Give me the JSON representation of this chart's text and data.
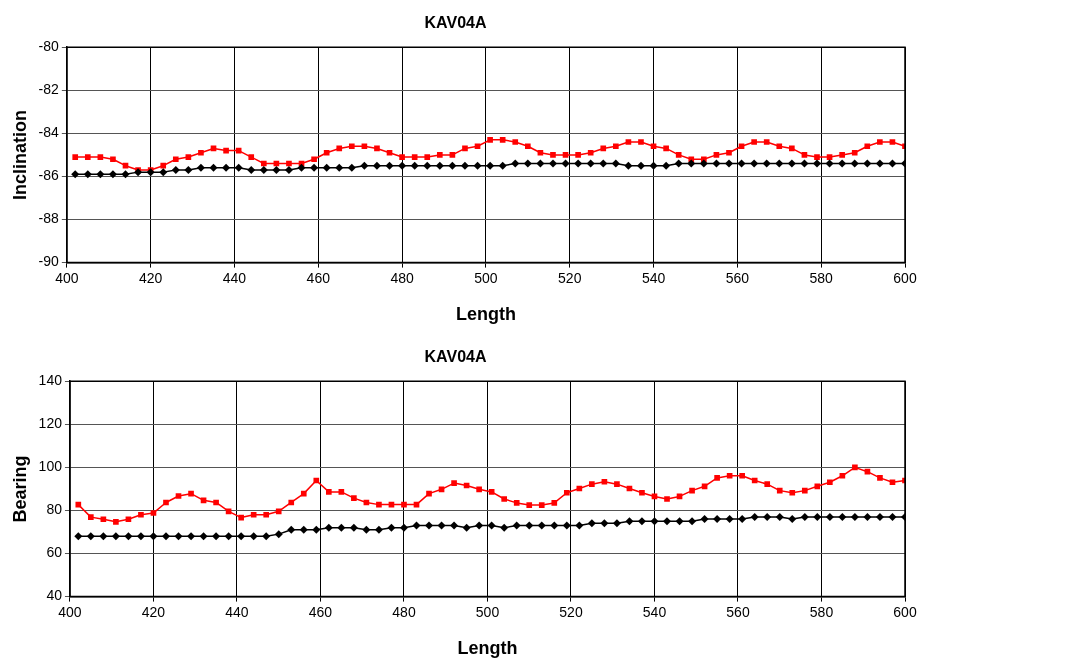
{
  "chart_data": [
    {
      "type": "line",
      "title": "KAV04A",
      "xlabel": "Length",
      "ylabel": "Inclination",
      "xlim": [
        400,
        600
      ],
      "xticks": [
        400,
        420,
        440,
        460,
        480,
        500,
        520,
        540,
        560,
        580,
        600
      ],
      "ylim": [
        -90,
        -80
      ],
      "yticks": [
        -90,
        -88,
        -86,
        -84,
        -82,
        -80
      ],
      "grid": true,
      "legend": false,
      "line_style": "solid",
      "x": [
        402,
        405,
        408,
        411,
        414,
        417,
        420,
        423,
        426,
        429,
        432,
        435,
        438,
        441,
        444,
        447,
        450,
        453,
        456,
        459,
        462,
        465,
        468,
        471,
        474,
        477,
        480,
        483,
        486,
        489,
        492,
        495,
        498,
        501,
        504,
        507,
        510,
        513,
        516,
        519,
        522,
        525,
        528,
        531,
        534,
        537,
        540,
        543,
        546,
        549,
        552,
        555,
        558,
        561,
        564,
        567,
        570,
        573,
        576,
        579,
        582,
        585,
        588,
        591,
        594,
        597,
        600
      ],
      "series": [
        {
          "color": "#000000",
          "marker": "diamond",
          "values": [
            -85.9,
            -85.9,
            -85.9,
            -85.9,
            -85.9,
            -85.8,
            -85.8,
            -85.8,
            -85.7,
            -85.7,
            -85.6,
            -85.6,
            -85.6,
            -85.6,
            -85.7,
            -85.7,
            -85.7,
            -85.7,
            -85.6,
            -85.6,
            -85.6,
            -85.6,
            -85.6,
            -85.5,
            -85.5,
            -85.5,
            -85.5,
            -85.5,
            -85.5,
            -85.5,
            -85.5,
            -85.5,
            -85.5,
            -85.5,
            -85.5,
            -85.4,
            -85.4,
            -85.4,
            -85.4,
            -85.4,
            -85.4,
            -85.4,
            -85.4,
            -85.4,
            -85.5,
            -85.5,
            -85.5,
            -85.5,
            -85.4,
            -85.4,
            -85.4,
            -85.4,
            -85.4,
            -85.4,
            -85.4,
            -85.4,
            -85.4,
            -85.4,
            -85.4,
            -85.4,
            -85.4,
            -85.4,
            -85.4,
            -85.4,
            -85.4,
            -85.4,
            -85.4
          ]
        },
        {
          "color": "#ff0000",
          "marker": "square",
          "values": [
            -85.1,
            -85.1,
            -85.1,
            -85.2,
            -85.5,
            -85.7,
            -85.7,
            -85.5,
            -85.2,
            -85.1,
            -84.9,
            -84.7,
            -84.8,
            -84.8,
            -85.1,
            -85.4,
            -85.4,
            -85.4,
            -85.4,
            -85.2,
            -84.9,
            -84.7,
            -84.6,
            -84.6,
            -84.7,
            -84.9,
            -85.1,
            -85.1,
            -85.1,
            -85.0,
            -85.0,
            -84.7,
            -84.6,
            -84.3,
            -84.3,
            -84.4,
            -84.6,
            -84.9,
            -85.0,
            -85.0,
            -85.0,
            -84.9,
            -84.7,
            -84.6,
            -84.4,
            -84.4,
            -84.6,
            -84.7,
            -85.0,
            -85.2,
            -85.2,
            -85.0,
            -84.9,
            -84.6,
            -84.4,
            -84.4,
            -84.6,
            -84.7,
            -85.0,
            -85.1,
            -85.1,
            -85.0,
            -84.9,
            -84.6,
            -84.4,
            -84.4,
            -84.6
          ]
        }
      ]
    },
    {
      "type": "line",
      "title": "KAV04A",
      "xlabel": "Length",
      "ylabel": "Bearing",
      "xlim": [
        400,
        600
      ],
      "xticks": [
        400,
        420,
        440,
        460,
        480,
        500,
        520,
        540,
        560,
        580,
        600
      ],
      "ylim": [
        40,
        140
      ],
      "yticks": [
        40,
        60,
        80,
        100,
        120,
        140
      ],
      "grid": true,
      "legend": false,
      "line_style": "solid",
      "x": [
        402,
        405,
        408,
        411,
        414,
        417,
        420,
        423,
        426,
        429,
        432,
        435,
        438,
        441,
        444,
        447,
        450,
        453,
        456,
        459,
        462,
        465,
        468,
        471,
        474,
        477,
        480,
        483,
        486,
        489,
        492,
        495,
        498,
        501,
        504,
        507,
        510,
        513,
        516,
        519,
        522,
        525,
        528,
        531,
        534,
        537,
        540,
        543,
        546,
        549,
        552,
        555,
        558,
        561,
        564,
        567,
        570,
        573,
        576,
        579,
        582,
        585,
        588,
        591,
        594,
        597,
        600
      ],
      "series": [
        {
          "color": "#000000",
          "marker": "diamond",
          "values": [
            68,
            68,
            68,
            68,
            68,
            68,
            68,
            68,
            68,
            68,
            68,
            68,
            68,
            68,
            68,
            68,
            69,
            71,
            71,
            71,
            72,
            72,
            72,
            71,
            71,
            72,
            72,
            73,
            73,
            73,
            73,
            72,
            73,
            73,
            72,
            73,
            73,
            73,
            73,
            73,
            73,
            74,
            74,
            74,
            75,
            75,
            75,
            75,
            75,
            75,
            76,
            76,
            76,
            76,
            77,
            77,
            77,
            76,
            77,
            77,
            77,
            77,
            77,
            77,
            77,
            77,
            77
          ]
        },
        {
          "color": "#ff0000",
          "marker": "square",
          "values": [
            82.7,
            76.9,
            75.9,
            74.7,
            75.9,
            78,
            78.8,
            83.7,
            86.7,
            87.8,
            84.7,
            83.7,
            79.6,
            76.7,
            78,
            78,
            79.6,
            83.7,
            87.8,
            93.9,
            88.6,
            88.6,
            85.7,
            83.7,
            82.7,
            82.7,
            82.7,
            82.7,
            87.8,
            89.8,
            92.7,
            91.6,
            89.8,
            88.6,
            85.3,
            83.5,
            82.5,
            82.5,
            83.5,
            88.2,
            90.2,
            92.2,
            93.3,
            92.2,
            90.2,
            88.2,
            86.5,
            85.3,
            86.5,
            89.2,
            91.2,
            95.1,
            96.1,
            96.1,
            93.9,
            92.2,
            89.2,
            88.2,
            89.2,
            91.2,
            93.1,
            96.1,
            100,
            98,
            95.1,
            93.1,
            93.9
          ]
        }
      ]
    }
  ]
}
